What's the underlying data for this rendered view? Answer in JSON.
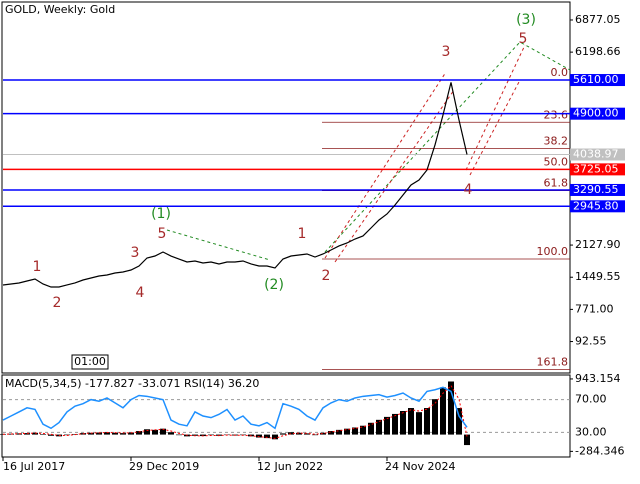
{
  "chart_data": [
    {
      "type": "line",
      "title": "GOLD, Weekly:  Gold",
      "color": "#000000",
      "categories": [
        "16 Jul 2017",
        null,
        null,
        null,
        null,
        null,
        null,
        null,
        null,
        null,
        null,
        null,
        null,
        null,
        null,
        null,
        "29 Dec 2019",
        null,
        null,
        null,
        null,
        null,
        null,
        null,
        null,
        null,
        null,
        null,
        null,
        null,
        null,
        null,
        "12 Jun 2022",
        null,
        null,
        null,
        null,
        null,
        null,
        null,
        null,
        null,
        null,
        null,
        null,
        null,
        null,
        null,
        "24 Nov 2024",
        null,
        null,
        null,
        null,
        null,
        null,
        null,
        null,
        null,
        null
      ],
      "values": [
        1286,
        1307,
        1328,
        1370,
        1412,
        1307,
        1243,
        1243,
        1286,
        1328,
        1391,
        1433,
        1475,
        1497,
        1539,
        1560,
        1602,
        1686,
        1855,
        1897,
        1982,
        1897,
        1834,
        1771,
        1792,
        1750,
        1771,
        1729,
        1771,
        1771,
        1792,
        1729,
        1686,
        1686,
        1644,
        1834,
        1897,
        1919,
        1940,
        1876,
        1940,
        2024,
        2109,
        2172,
        2256,
        2320,
        2488,
        2657,
        2784,
        2974,
        3185,
        3396,
        3501,
        3712,
        4240,
        4872,
        5560,
        4767,
        4038.97
      ],
      "ylim": [
        -550,
        7193
      ],
      "yticks": [
        6877.05,
        6198.66,
        {
          "value": 2127.9,
          "label": "2127.90"
        },
        1449.55,
        {
          "value": 771,
          "label": "771.00"
        },
        92.55
      ],
      "levels": [
        {
          "value": 5610,
          "label": "5610.00",
          "color": "#0000ff"
        },
        {
          "value": 4900,
          "label": "4900.00",
          "color": "#0000ff"
        },
        {
          "value": 3725.05,
          "label": "3725.05",
          "color": "#ff0000"
        },
        {
          "value": 3290.55,
          "label": "3290.55",
          "color": "#0000ff"
        },
        {
          "value": 2945.8,
          "label": "2945.80",
          "color": "#0000ff"
        }
      ],
      "current_price": {
        "value": 4038.97,
        "color": "#c0c0c0"
      },
      "fibonacci": {
        "high": 5610,
        "low": 1834,
        "color": "#8b1a1a",
        "levels": [
          {
            "value": 0,
            "label": "0.0"
          },
          23.6,
          38.2,
          {
            "value": 50,
            "label": "50.0"
          },
          61.8,
          {
            "value": 100,
            "label": "100.0"
          },
          161.8
        ]
      },
      "annotations": [
        {
          "text": "1",
          "color": "#a52a2a"
        },
        {
          "text": "2",
          "color": "#a52a2a"
        },
        {
          "text": "3",
          "color": "#a52a2a"
        },
        {
          "text": "4",
          "color": "#a52a2a"
        },
        {
          "text": "5",
          "color": "#a52a2a"
        },
        {
          "text": "(1)",
          "color": "#228b22"
        },
        {
          "text": "(2)",
          "color": "#228b22"
        },
        {
          "text": "1",
          "color": "#a52a2a"
        },
        {
          "text": "2",
          "color": "#a52a2a"
        },
        {
          "text": "3",
          "color": "#a52a2a"
        },
        {
          "text": "4",
          "color": "#a52a2a"
        },
        {
          "text": "5",
          "color": "#a52a2a"
        },
        {
          "text": "(3)",
          "color": "#228b22"
        }
      ],
      "time_label": "01:00"
    },
    {
      "type": "macd",
      "title": "MACD(5,34,5) -177.827 -33.071 RSI(14) 36.20",
      "histogram": [
        10,
        15,
        20,
        25,
        30,
        10,
        -20,
        -30,
        -10,
        10,
        25,
        30,
        35,
        40,
        30,
        25,
        35,
        60,
        90,
        80,
        100,
        40,
        -10,
        -30,
        -20,
        -25,
        -10,
        -20,
        0,
        -15,
        -10,
        -30,
        -50,
        -60,
        -80,
        20,
        40,
        30,
        20,
        -10,
        30,
        60,
        80,
        100,
        120,
        150,
        200,
        250,
        300,
        350,
        400,
        450,
        380,
        450,
        600,
        800,
        900,
        450,
        -177.827
      ],
      "signal": [
        5,
        10,
        15,
        20,
        25,
        20,
        5,
        -15,
        -15,
        0,
        15,
        25,
        30,
        35,
        33,
        28,
        30,
        45,
        70,
        80,
        90,
        60,
        20,
        -10,
        -20,
        -22,
        -15,
        -17,
        -8,
        -12,
        -11,
        -20,
        -35,
        -48,
        -65,
        -20,
        15,
        25,
        22,
        5,
        18,
        45,
        65,
        85,
        105,
        130,
        170,
        220,
        270,
        320,
        370,
        420,
        400,
        430,
        530,
        700,
        830,
        600,
        -33.071
      ],
      "rsi": [
        45,
        50,
        55,
        60,
        58,
        40,
        35,
        42,
        55,
        62,
        65,
        70,
        68,
        72,
        66,
        60,
        70,
        75,
        74,
        72,
        70,
        45,
        40,
        38,
        55,
        50,
        48,
        52,
        58,
        45,
        50,
        40,
        38,
        42,
        35,
        65,
        62,
        58,
        50,
        45,
        60,
        66,
        70,
        68,
        72,
        74,
        75,
        76,
        73,
        75,
        78,
        72,
        68,
        80,
        82,
        85,
        80,
        50,
        36.2
      ],
      "histogram_color": "#000000",
      "signal_color": "#ff0000",
      "rsi_color": "#1e90ff",
      "ylim": [
        -380,
        1010
      ],
      "yticks": [
        943.154,
        -284.346
      ],
      "y2lim": [
        0,
        100
      ],
      "y2ticks": [
        {
          "value": 70,
          "label": "70.00"
        },
        {
          "value": 30,
          "label": "30.00"
        }
      ]
    }
  ]
}
